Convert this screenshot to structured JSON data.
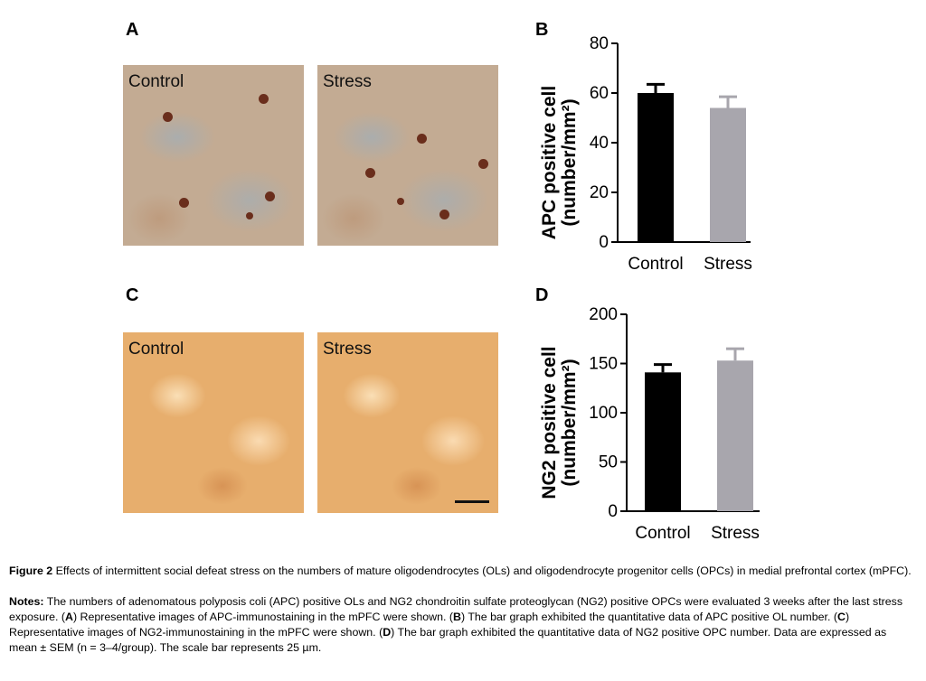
{
  "panels": {
    "a": "A",
    "b": "B",
    "c": "C",
    "d": "D"
  },
  "images": {
    "a_control": "Control",
    "a_stress": "Stress",
    "c_control": "Control",
    "c_stress": "Stress"
  },
  "chart_data": [
    {
      "type": "bar",
      "panel": "B",
      "categories": [
        "Control",
        "Stress"
      ],
      "values": [
        60,
        54
      ],
      "errors": [
        3.5,
        4.5
      ],
      "colors": [
        "#000000",
        "#a8a6ad"
      ],
      "ylabel_line1": "APC positive cell",
      "ylabel_line2": "(number/mm²)",
      "ylim": [
        0,
        80
      ],
      "yticks": [
        0,
        20,
        40,
        60,
        80
      ]
    },
    {
      "type": "bar",
      "panel": "D",
      "categories": [
        "Control",
        "Stress"
      ],
      "values": [
        141,
        153
      ],
      "errors": [
        8,
        12
      ],
      "colors": [
        "#000000",
        "#a8a6ad"
      ],
      "ylabel_line1": "NG2 positive cell",
      "ylabel_line2": "(number/mm²)",
      "ylim": [
        0,
        200
      ],
      "yticks": [
        0,
        50,
        100,
        150,
        200
      ]
    }
  ],
  "caption": {
    "fig_label": "Figure 2",
    "fig_text": " Effects of intermittent social defeat stress on the numbers of mature oligodendrocytes (OLs) and oligodendrocyte progenitor cells (OPCs) in medial prefrontal cortex (mPFC).",
    "notes_label": "Notes:",
    "notes_1": " The numbers of adenomatous polyposis coli (APC) positive OLs and NG2 chondroitin sulfate proteoglycan (NG2) positive OPCs were evaluated 3 weeks after the last stress exposure. (",
    "A": "A",
    "notes_2": ") Representative images of APC-immunostaining in the mPFC were shown. (",
    "B": "B",
    "notes_3": ") The bar graph exhibited the quantitative data of APC positive OL number. (",
    "C": "C",
    "notes_4": ") Representative images of NG2-immunostaining in the mPFC were shown. (",
    "D": "D",
    "notes_5": ") The bar graph exhibited the quantitative data of NG2 positive OPC number. Data are expressed as mean ± SEM (n = 3–4/group). The scale bar represents 25 µm."
  }
}
